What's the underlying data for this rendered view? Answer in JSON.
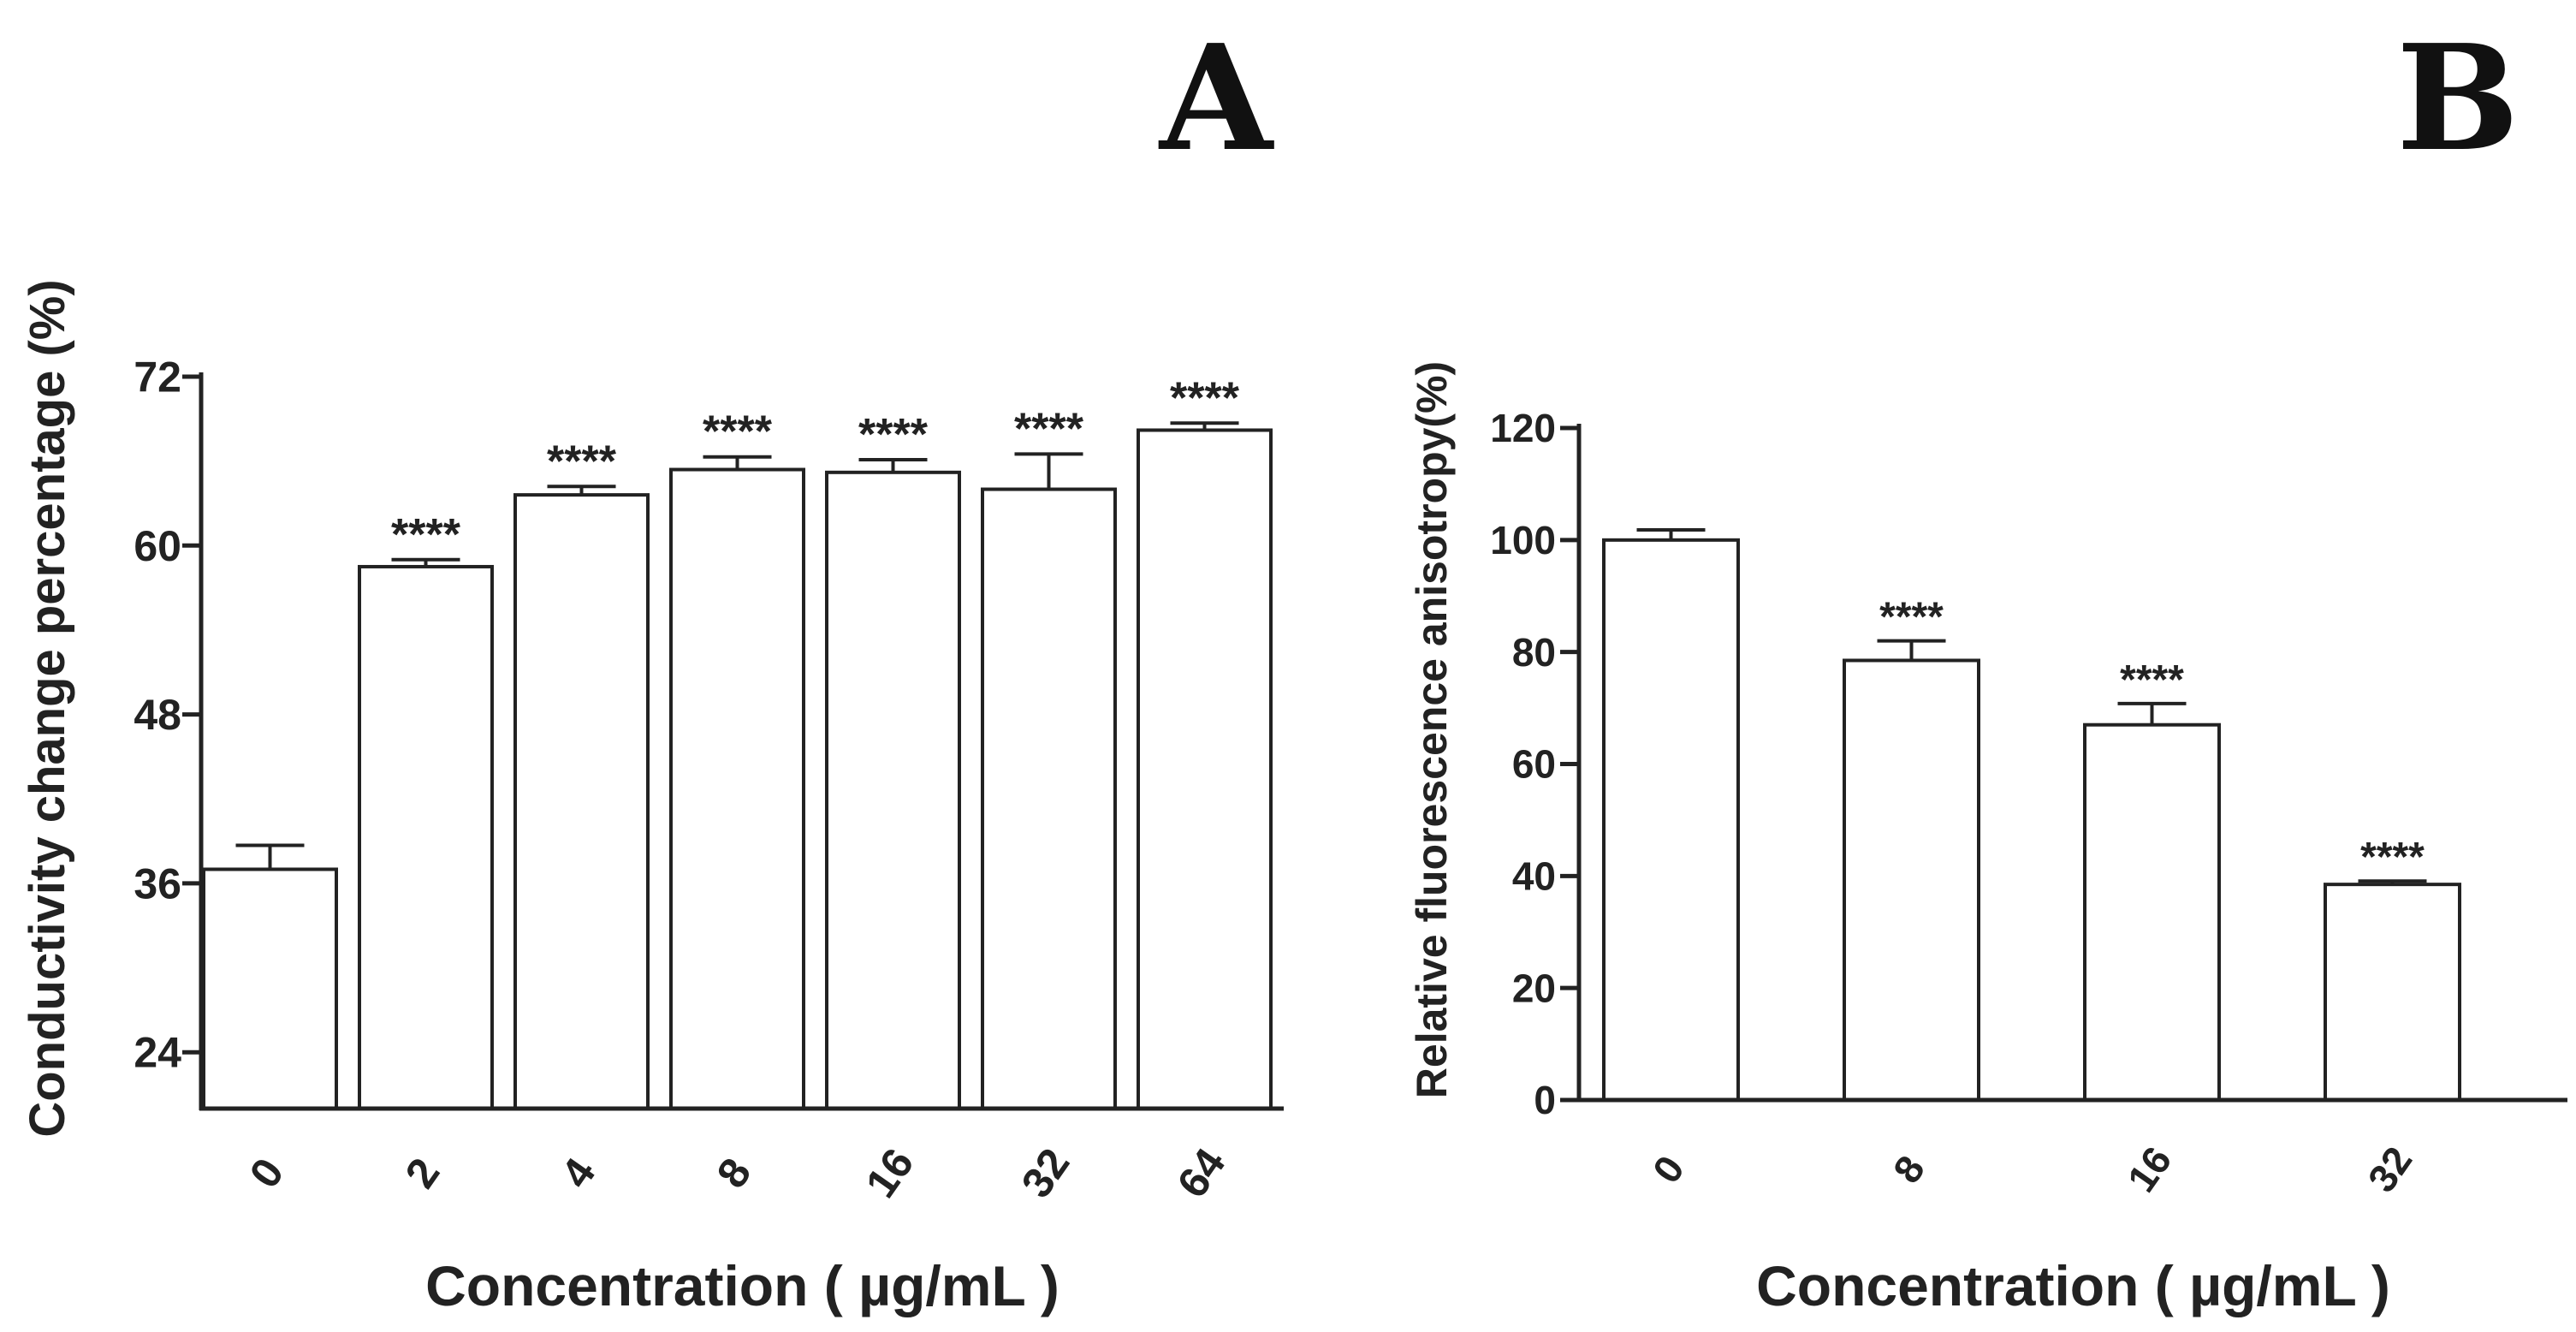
{
  "panels": {
    "a": {
      "letter": "A"
    },
    "b": {
      "letter": "B"
    }
  },
  "chart_data": [
    {
      "type": "bar",
      "panel": "A",
      "title": "",
      "xlabel": "Concentration ( µg/mL )",
      "ylabel": "Conductivity change percentage (%)",
      "categories": [
        "0",
        "2",
        "4",
        "8",
        "16",
        "32",
        "64"
      ],
      "values": [
        37.0,
        58.5,
        63.6,
        65.4,
        65.2,
        64.0,
        68.2
      ],
      "errors": [
        1.7,
        0.5,
        0.6,
        0.9,
        0.9,
        2.5,
        0.5
      ],
      "annotations": [
        "",
        "****",
        "****",
        "****",
        "****",
        "****",
        "****"
      ],
      "ylim": [
        20,
        72
      ],
      "yticks": [
        24,
        36,
        48,
        60,
        72
      ],
      "colors": {
        "bar_fill": "#ffffff",
        "bar_stroke": "#222222"
      }
    },
    {
      "type": "bar",
      "panel": "B",
      "title": "",
      "xlabel": "Concentration ( µg/mL )",
      "ylabel": "Relative fluorescence anisotropy(%)",
      "categories": [
        "0",
        "8",
        "16",
        "32"
      ],
      "values": [
        100.0,
        78.5,
        67.0,
        38.5
      ],
      "errors": [
        1.8,
        3.5,
        3.8,
        0.6
      ],
      "annotations": [
        "",
        "****",
        "****",
        "****"
      ],
      "ylim": [
        0,
        120
      ],
      "yticks": [
        0,
        20,
        40,
        60,
        80,
        100,
        120
      ],
      "colors": {
        "bar_fill": "#ffffff",
        "bar_stroke": "#222222"
      }
    }
  ]
}
